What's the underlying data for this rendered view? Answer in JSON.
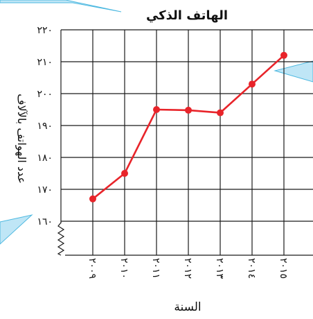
{
  "chart_data": {
    "type": "line",
    "title": "الهاتف الذكي",
    "xlabel": "السنة",
    "ylabel": "عدد الهواتف بالآلاف",
    "x": [
      "٢٠٠٩",
      "٢٠١٠",
      "٢٠١١",
      "٢٠١٢",
      "٢٠١٣",
      "٢٠١٤",
      "٢٠١٥"
    ],
    "series": [
      {
        "values": [
          167,
          175,
          195,
          194.8,
          194,
          203,
          212
        ]
      }
    ],
    "ylim": [
      160,
      220
    ],
    "yticks": [
      160,
      170,
      180,
      190,
      200,
      210,
      220
    ],
    "ytick_labels": [
      "١٦٠",
      "١٧٠",
      "١٨٠",
      "١٩٠",
      "٢٠٠",
      "٢١٠",
      "٢٢٠"
    ],
    "axis_break": true,
    "grid": true,
    "colors": {
      "line": "#e8242a",
      "grid": "#1a1a1a",
      "callout": "#bfe6f6",
      "callout_border": "#4cb8e0"
    }
  }
}
